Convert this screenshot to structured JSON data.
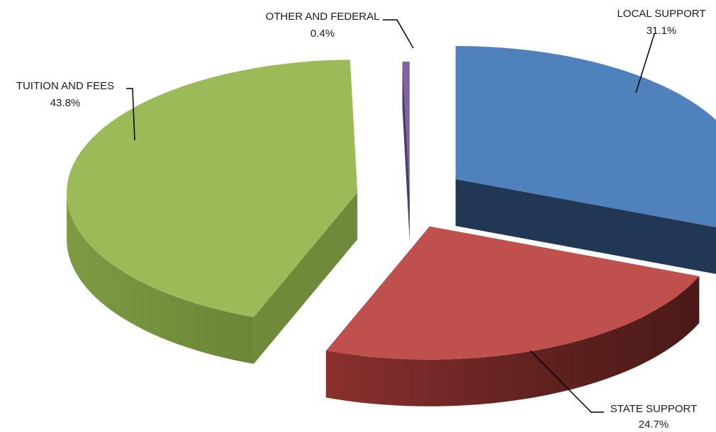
{
  "chart_data": {
    "type": "pie",
    "title": "",
    "style": "exploded 3d pie",
    "legend": "none (data labels with leader lines)",
    "slices": [
      {
        "label": "LOCAL SUPPORT",
        "value": 31.1,
        "value_label": "31.1%",
        "color": "#4f81bd",
        "side_color": "#213754"
      },
      {
        "label": "STATE SUPPORT",
        "value": 24.7,
        "value_label": "24.7%",
        "color": "#c0504d",
        "side_color": "#5e211f"
      },
      {
        "label": "TUITION AND FEES",
        "value": 43.8,
        "value_label": "43.8%",
        "color": "#9bbb59",
        "side_color": "#6f8a3a"
      },
      {
        "label": "OTHER AND FEDERAL",
        "value": 0.4,
        "value_label": "0.4%",
        "color": "#8064a2",
        "side_color": "#4e3a66"
      }
    ]
  }
}
